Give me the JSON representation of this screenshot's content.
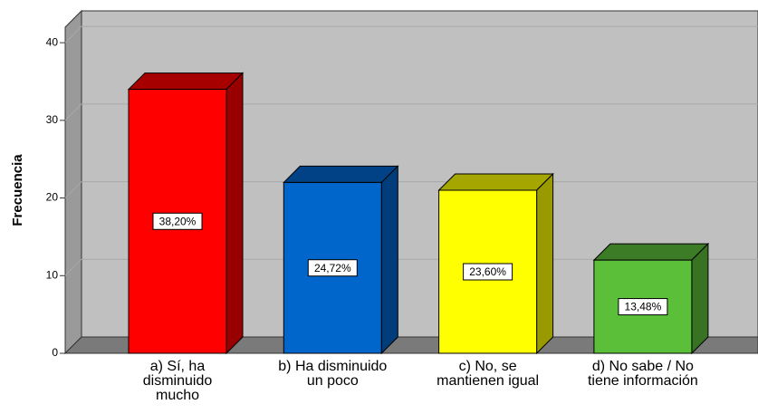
{
  "chart_data": {
    "type": "bar3d",
    "y_label": "Frecuencia",
    "categories": [
      "a) Sí, ha\ndisminuido\nmucho",
      "b) Ha disminuido\nun poco",
      "c) No, se\nmantienen igual",
      "d) No sabe / No\ntiene información"
    ],
    "values": [
      34,
      22,
      21,
      12
    ],
    "percent_values": [
      38.2,
      24.72,
      23.6,
      13.48
    ],
    "percent_labels": [
      "38,20%",
      "24,72%",
      "23,60%",
      "13,48%"
    ],
    "colors": [
      "#ff0000",
      "#0066cc",
      "#ffff00",
      "#5cbf3a"
    ],
    "ylim": [
      0,
      42
    ],
    "yticks": [
      0,
      10,
      20,
      30,
      40
    ],
    "grid": true
  }
}
